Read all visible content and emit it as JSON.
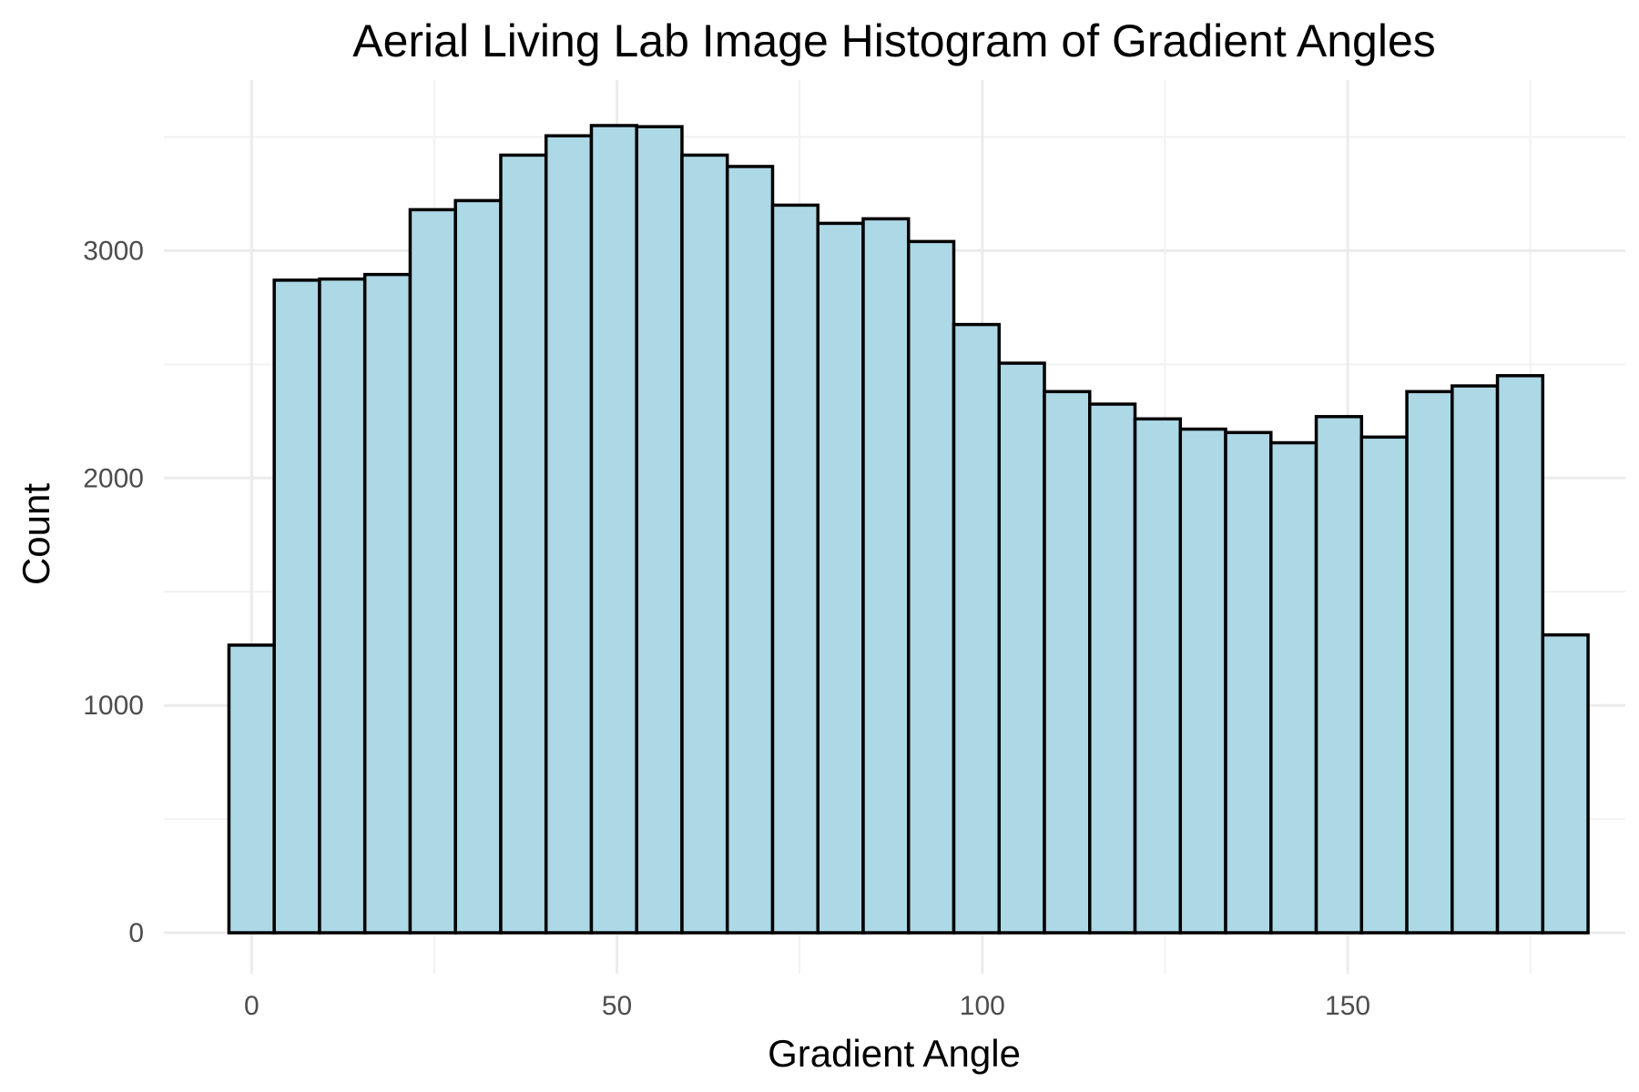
{
  "chart_data": {
    "type": "bar",
    "title": "Aerial Living Lab Image Histogram of Gradient Angles",
    "xlabel": "Gradient Angle",
    "ylabel": "Count",
    "bin_width": 6.2,
    "first_bin_start": -3.1,
    "bins": [
      {
        "x0": -3.1,
        "x1": 3.1,
        "count": 1265
      },
      {
        "x0": 3.1,
        "x1": 9.3,
        "count": 2870
      },
      {
        "x0": 9.3,
        "x1": 15.5,
        "count": 2875
      },
      {
        "x0": 15.5,
        "x1": 21.7,
        "count": 2895
      },
      {
        "x0": 21.7,
        "x1": 27.9,
        "count": 3180
      },
      {
        "x0": 27.9,
        "x1": 34.1,
        "count": 3220
      },
      {
        "x0": 34.1,
        "x1": 40.3,
        "count": 3420
      },
      {
        "x0": 40.3,
        "x1": 46.5,
        "count": 3505
      },
      {
        "x0": 46.5,
        "x1": 52.7,
        "count": 3550
      },
      {
        "x0": 52.7,
        "x1": 58.9,
        "count": 3545
      },
      {
        "x0": 58.9,
        "x1": 65.1,
        "count": 3420
      },
      {
        "x0": 65.1,
        "x1": 71.3,
        "count": 3370
      },
      {
        "x0": 71.3,
        "x1": 77.5,
        "count": 3200
      },
      {
        "x0": 77.5,
        "x1": 83.7,
        "count": 3120
      },
      {
        "x0": 83.7,
        "x1": 89.9,
        "count": 3140
      },
      {
        "x0": 89.9,
        "x1": 96.1,
        "count": 3040
      },
      {
        "x0": 96.1,
        "x1": 102.3,
        "count": 2675
      },
      {
        "x0": 102.3,
        "x1": 108.5,
        "count": 2505
      },
      {
        "x0": 108.5,
        "x1": 114.7,
        "count": 2380
      },
      {
        "x0": 114.7,
        "x1": 120.9,
        "count": 2325
      },
      {
        "x0": 120.9,
        "x1": 127.1,
        "count": 2260
      },
      {
        "x0": 127.1,
        "x1": 133.3,
        "count": 2215
      },
      {
        "x0": 133.3,
        "x1": 139.5,
        "count": 2200
      },
      {
        "x0": 139.5,
        "x1": 145.7,
        "count": 2155
      },
      {
        "x0": 145.7,
        "x1": 151.9,
        "count": 2270
      },
      {
        "x0": 151.9,
        "x1": 158.1,
        "count": 2180
      },
      {
        "x0": 158.1,
        "x1": 164.3,
        "count": 2380
      },
      {
        "x0": 164.3,
        "x1": 170.5,
        "count": 2405
      },
      {
        "x0": 170.5,
        "x1": 176.7,
        "count": 2450
      },
      {
        "x0": 176.7,
        "x1": 182.9,
        "count": 1310
      }
    ],
    "xlim": [
      -12,
      188
    ],
    "ylim": [
      -180,
      3750
    ],
    "x_ticks": [
      {
        "value": 0,
        "label": "0"
      },
      {
        "value": 50,
        "label": "50"
      },
      {
        "value": 100,
        "label": "100"
      },
      {
        "value": 150,
        "label": "150"
      }
    ],
    "x_minor_ticks": [
      25,
      75,
      125,
      175
    ],
    "y_ticks": [
      {
        "value": 0,
        "label": "0"
      },
      {
        "value": 1000,
        "label": "1000"
      },
      {
        "value": 2000,
        "label": "2000"
      },
      {
        "value": 3000,
        "label": "3000"
      }
    ],
    "y_minor_ticks": [
      500,
      1500,
      2500,
      3500
    ],
    "grid": true,
    "legend": "none",
    "bar_fill": "#add8e6",
    "bar_outline": "#000000",
    "background": "#ffffff"
  }
}
